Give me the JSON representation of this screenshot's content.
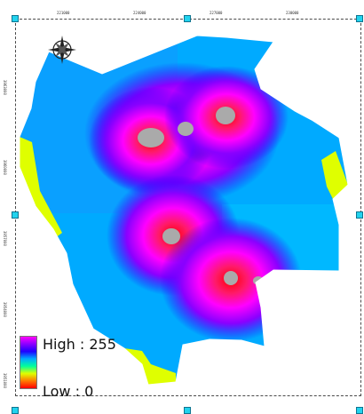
{
  "map": {
    "legend": {
      "high_label": "High : 255",
      "low_label": "Low : 0",
      "ramp_colors": [
        "#ff00ff",
        "#8a00ff",
        "#1e00ff",
        "#00aaff",
        "#00ff9c",
        "#dfff00",
        "#ff7a00",
        "#ff0000"
      ]
    },
    "top_ticks": [
      "221000",
      "224000",
      "227000",
      "230000"
    ],
    "left_ticks": [
      "3963000",
      "3960000",
      "3957000",
      "3954000",
      "3951000"
    ],
    "hotspot_color": "#aaaaaa",
    "background_field_color": "#00aaff",
    "edge_highlight_color": "#dfff00",
    "compass_icon": "north-arrow-compass"
  }
}
